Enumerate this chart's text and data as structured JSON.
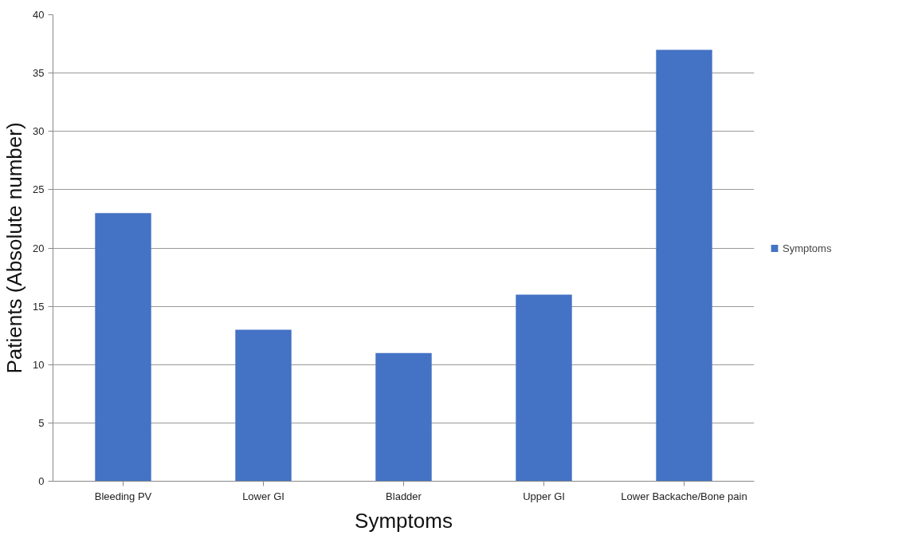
{
  "chart_data": {
    "type": "bar",
    "xlabel": "Symptoms",
    "ylabel": "Patients (Absolute number)",
    "categories": [
      "Bleeding PV",
      "Lower GI",
      "Bladder",
      "Upper GI",
      "Lower Backache/Bone pain"
    ],
    "series": [
      {
        "name": "Symptoms",
        "color": "#4472c4",
        "values": [
          23,
          13,
          11,
          16,
          37
        ]
      }
    ],
    "ylim": [
      0,
      40
    ],
    "yticks": [
      0,
      5,
      10,
      15,
      20,
      25,
      30,
      35,
      40
    ],
    "grid": "y",
    "legend": "right"
  }
}
